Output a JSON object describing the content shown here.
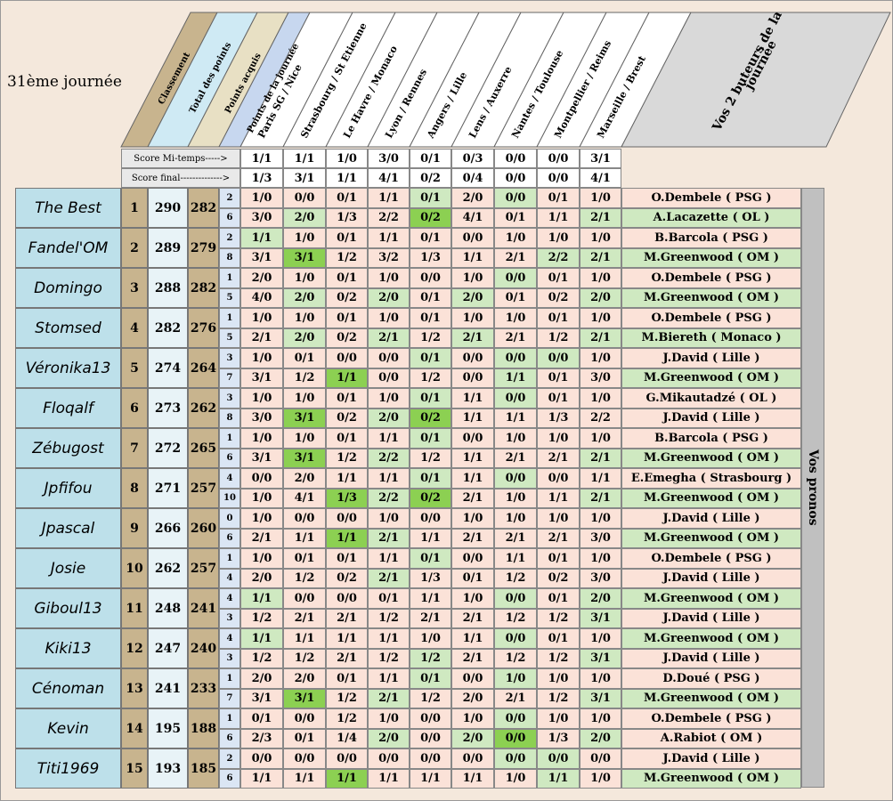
{
  "title": "31ème journée",
  "headers": {
    "classement": "Classement",
    "total": "Total des points",
    "acquis": "Points acquis",
    "journee": "Points de la journée",
    "buteurs": "Vos 2 buteurs de la journée",
    "vos_pronos": "Vos pronos"
  },
  "matches": [
    "Paris SG / Nice",
    "Strasbourg / St Etienne",
    "Le Havre / Monaco",
    "Lyon / Rennes",
    "Angers / Lille",
    "Lens / Auxerre",
    "Nantes / Toulouse",
    "Montpellier / Reims",
    "Marseille / Brest"
  ],
  "score_mi_temps": {
    "label": "Score Mi-temps----->",
    "values": [
      "1/1",
      "1/1",
      "1/0",
      "3/0",
      "0/1",
      "0/3",
      "0/0",
      "0/0",
      "3/1"
    ]
  },
  "score_final": {
    "label": "Score final-------------->",
    "values": [
      "1/3",
      "3/1",
      "1/1",
      "4/1",
      "0/2",
      "0/4",
      "0/0",
      "0/0",
      "4/1"
    ]
  },
  "colors": {
    "name_bg": "#bde0ea",
    "rank_bg": "#c8b48e",
    "pink": "#fbe2d8",
    "light_green": "#cfe9c1",
    "dark_green": "#8cd052"
  },
  "players": [
    {
      "name": "The Best",
      "rank": "1",
      "total": "290",
      "acquis": "282",
      "r1": {
        "pts": "2",
        "scores": [
          "1/0",
          "0/0",
          "0/1",
          "1/1",
          "0/1",
          "2/0",
          "0/0",
          "0/1",
          "1/0"
        ],
        "scorer": "O.Dembele ( PSG )"
      },
      "r2": {
        "pts": "6",
        "scores": [
          "3/0",
          "2/0",
          "1/3",
          "2/2",
          "0/2",
          "4/1",
          "0/1",
          "1/1",
          "2/1"
        ],
        "scorer": "A.Lacazette ( OL )"
      }
    },
    {
      "name": "Fandel'OM",
      "rank": "2",
      "total": "289",
      "acquis": "279",
      "r1": {
        "pts": "2",
        "scores": [
          "1/1",
          "1/0",
          "0/1",
          "1/1",
          "0/1",
          "0/0",
          "1/0",
          "1/0",
          "1/0"
        ],
        "scorer": "B.Barcola ( PSG )"
      },
      "r2": {
        "pts": "8",
        "scores": [
          "3/1",
          "3/1",
          "1/2",
          "3/2",
          "1/3",
          "1/1",
          "2/1",
          "2/2",
          "2/1"
        ],
        "scorer": "M.Greenwood ( OM )"
      }
    },
    {
      "name": "Domingo",
      "rank": "3",
      "total": "288",
      "acquis": "282",
      "r1": {
        "pts": "1",
        "scores": [
          "2/0",
          "1/0",
          "0/1",
          "1/0",
          "0/0",
          "1/0",
          "0/0",
          "0/1",
          "1/0"
        ],
        "scorer": "O.Dembele ( PSG )"
      },
      "r2": {
        "pts": "5",
        "scores": [
          "4/0",
          "2/0",
          "0/2",
          "2/0",
          "0/1",
          "2/0",
          "0/1",
          "0/2",
          "2/0"
        ],
        "scorer": "M.Greenwood ( OM )"
      }
    },
    {
      "name": "Stomsed",
      "rank": "4",
      "total": "282",
      "acquis": "276",
      "r1": {
        "pts": "1",
        "scores": [
          "1/0",
          "1/0",
          "0/1",
          "1/0",
          "0/1",
          "1/0",
          "1/0",
          "0/1",
          "1/0"
        ],
        "scorer": "O.Dembele ( PSG )"
      },
      "r2": {
        "pts": "5",
        "scores": [
          "2/1",
          "2/0",
          "0/2",
          "2/1",
          "1/2",
          "2/1",
          "2/1",
          "1/2",
          "2/1"
        ],
        "scorer": "M.Biereth ( Monaco )"
      }
    },
    {
      "name": "Véronika13",
      "rank": "5",
      "total": "274",
      "acquis": "264",
      "r1": {
        "pts": "3",
        "scores": [
          "1/0",
          "0/1",
          "0/0",
          "0/0",
          "0/1",
          "0/0",
          "0/0",
          "0/0",
          "1/0"
        ],
        "scorer": "J.David ( Lille )"
      },
      "r2": {
        "pts": "7",
        "scores": [
          "3/1",
          "1/2",
          "1/1",
          "0/0",
          "1/2",
          "0/0",
          "1/1",
          "0/1",
          "3/0"
        ],
        "scorer": "M.Greenwood ( OM )"
      }
    },
    {
      "name": "Floqalf",
      "rank": "6",
      "total": "273",
      "acquis": "262",
      "r1": {
        "pts": "3",
        "scores": [
          "1/0",
          "1/0",
          "0/1",
          "1/0",
          "0/1",
          "1/1",
          "0/0",
          "0/1",
          "1/0"
        ],
        "scorer": "G.Mikautadzé ( OL )"
      },
      "r2": {
        "pts": "8",
        "scores": [
          "3/0",
          "3/1",
          "0/2",
          "2/0",
          "0/2",
          "1/1",
          "1/1",
          "1/3",
          "2/2"
        ],
        "scorer": "J.David ( Lille )"
      }
    },
    {
      "name": "Zébugost",
      "rank": "7",
      "total": "272",
      "acquis": "265",
      "r1": {
        "pts": "1",
        "scores": [
          "1/0",
          "1/0",
          "0/1",
          "1/1",
          "0/1",
          "0/0",
          "1/0",
          "1/0",
          "1/0"
        ],
        "scorer": "B.Barcola ( PSG )"
      },
      "r2": {
        "pts": "6",
        "scores": [
          "3/1",
          "3/1",
          "1/2",
          "2/2",
          "1/2",
          "1/1",
          "2/1",
          "2/1",
          "2/1"
        ],
        "scorer": "M.Greenwood ( OM )"
      }
    },
    {
      "name": "Jpfifou",
      "rank": "8",
      "total": "271",
      "acquis": "257",
      "r1": {
        "pts": "4",
        "scores": [
          "0/0",
          "2/0",
          "1/1",
          "1/1",
          "0/1",
          "1/1",
          "0/0",
          "0/0",
          "1/1"
        ],
        "scorer": "E.Emegha ( Strasbourg )"
      },
      "r2": {
        "pts": "10",
        "scores": [
          "1/0",
          "4/1",
          "1/3",
          "2/2",
          "0/2",
          "2/1",
          "1/0",
          "1/1",
          "2/1"
        ],
        "scorer": "M.Greenwood ( OM )"
      }
    },
    {
      "name": "Jpascal",
      "rank": "9",
      "total": "266",
      "acquis": "260",
      "r1": {
        "pts": "0",
        "scores": [
          "1/0",
          "0/0",
          "0/0",
          "1/0",
          "0/0",
          "1/0",
          "1/0",
          "1/0",
          "1/0"
        ],
        "scorer": "J.David ( Lille )"
      },
      "r2": {
        "pts": "6",
        "scores": [
          "2/1",
          "1/1",
          "1/1",
          "2/1",
          "1/1",
          "2/1",
          "2/1",
          "2/1",
          "3/0"
        ],
        "scorer": "M.Greenwood ( OM )"
      }
    },
    {
      "name": "Josie",
      "rank": "10",
      "total": "262",
      "acquis": "257",
      "r1": {
        "pts": "1",
        "scores": [
          "1/0",
          "0/1",
          "0/1",
          "1/1",
          "0/1",
          "0/0",
          "1/1",
          "0/1",
          "1/0"
        ],
        "scorer": "O.Dembele ( PSG )"
      },
      "r2": {
        "pts": "4",
        "scores": [
          "2/0",
          "1/2",
          "0/2",
          "2/1",
          "1/3",
          "0/1",
          "1/2",
          "0/2",
          "3/0"
        ],
        "scorer": "J.David ( Lille )"
      }
    },
    {
      "name": "Giboul13",
      "rank": "11",
      "total": "248",
      "acquis": "241",
      "r1": {
        "pts": "4",
        "scores": [
          "1/1",
          "0/0",
          "0/0",
          "0/1",
          "1/1",
          "1/0",
          "0/0",
          "0/1",
          "2/0"
        ],
        "scorer": "M.Greenwood ( OM )"
      },
      "r2": {
        "pts": "3",
        "scores": [
          "1/2",
          "2/1",
          "2/1",
          "1/2",
          "2/1",
          "2/1",
          "1/2",
          "1/2",
          "3/1"
        ],
        "scorer": "J.David ( Lille )"
      }
    },
    {
      "name": "Kiki13",
      "rank": "12",
      "total": "247",
      "acquis": "240",
      "r1": {
        "pts": "4",
        "scores": [
          "1/1",
          "1/1",
          "1/1",
          "1/1",
          "1/0",
          "1/1",
          "0/0",
          "0/1",
          "1/0"
        ],
        "scorer": "M.Greenwood ( OM )"
      },
      "r2": {
        "pts": "3",
        "scores": [
          "1/2",
          "1/2",
          "2/1",
          "1/2",
          "1/2",
          "2/1",
          "1/2",
          "1/2",
          "3/1"
        ],
        "scorer": "J.David ( Lille )"
      }
    },
    {
      "name": "Cénoman",
      "rank": "13",
      "total": "241",
      "acquis": "233",
      "r1": {
        "pts": "1",
        "scores": [
          "2/0",
          "2/0",
          "0/1",
          "1/1",
          "0/1",
          "0/0",
          "1/0",
          "1/0",
          "1/0"
        ],
        "scorer": "D.Doué ( PSG )"
      },
      "r2": {
        "pts": "7",
        "scores": [
          "3/1",
          "3/1",
          "1/2",
          "2/1",
          "1/2",
          "2/0",
          "2/1",
          "1/2",
          "3/1"
        ],
        "scorer": "M.Greenwood ( OM )"
      }
    },
    {
      "name": "Kevin",
      "rank": "14",
      "total": "195",
      "acquis": "188",
      "r1": {
        "pts": "1",
        "scores": [
          "0/1",
          "0/0",
          "1/2",
          "1/0",
          "0/0",
          "1/0",
          "0/0",
          "1/0",
          "1/0"
        ],
        "scorer": "O.Dembele ( PSG )"
      },
      "r2": {
        "pts": "6",
        "scores": [
          "2/3",
          "0/1",
          "1/4",
          "2/0",
          "0/0",
          "2/0",
          "0/0",
          "1/3",
          "2/0"
        ],
        "scorer": "A.Rabiot ( OM  )"
      }
    },
    {
      "name": "Titi1969",
      "rank": "15",
      "total": "193",
      "acquis": "185",
      "r1": {
        "pts": "2",
        "scores": [
          "0/0",
          "0/0",
          "0/0",
          "0/0",
          "0/0",
          "0/0",
          "0/0",
          "0/0",
          "0/0"
        ],
        "scorer": "J.David ( Lille )"
      },
      "r2": {
        "pts": "6",
        "scores": [
          "1/1",
          "1/1",
          "1/1",
          "1/1",
          "1/1",
          "1/1",
          "1/0",
          "1/1",
          "1/0"
        ],
        "scorer": "M.Greenwood ( OM )"
      }
    }
  ]
}
